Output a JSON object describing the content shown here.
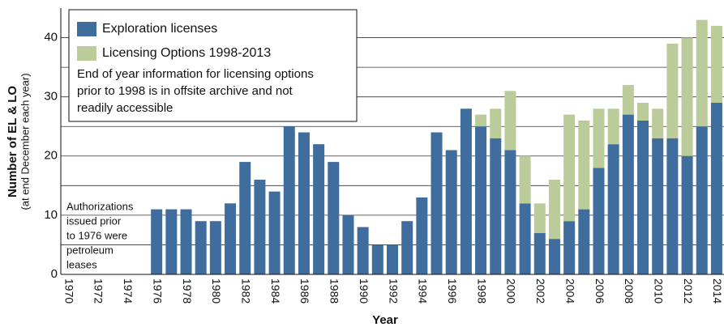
{
  "chart_data": {
    "type": "stacked-bar",
    "categories": [
      "1970",
      null,
      "1972",
      null,
      "1974",
      null,
      "1976",
      null,
      "1978",
      null,
      "1980",
      null,
      "1982",
      null,
      "1984",
      null,
      "1986",
      null,
      "1988",
      null,
      "1990",
      null,
      "1992",
      null,
      "1994",
      null,
      "1996",
      null,
      "1998",
      null,
      "2000",
      null,
      "2002",
      null,
      "2004",
      null,
      "2006",
      null,
      "2008",
      null,
      "2010",
      null,
      "2012",
      null,
      "2014"
    ],
    "series": [
      {
        "name": "Exploration licenses",
        "color": "#3f6e9e",
        "values": [
          null,
          null,
          null,
          null,
          null,
          null,
          11,
          11,
          11,
          9,
          9,
          12,
          19,
          16,
          14,
          25,
          24,
          22,
          19,
          10,
          8,
          5,
          5,
          9,
          13,
          24,
          21,
          28,
          25,
          23,
          21,
          12,
          7,
          6,
          9,
          11,
          18,
          22,
          27,
          26,
          23,
          23,
          20,
          25,
          29
        ]
      },
      {
        "name": "Licensing Options 1998-2013",
        "color": "#bccb9a",
        "values": [
          null,
          null,
          null,
          null,
          null,
          null,
          null,
          null,
          null,
          null,
          null,
          null,
          null,
          null,
          null,
          null,
          null,
          null,
          null,
          null,
          null,
          null,
          null,
          null,
          null,
          null,
          null,
          null,
          2,
          5,
          10,
          8,
          5,
          10,
          18,
          15,
          10,
          6,
          5,
          3,
          5,
          16,
          20,
          18,
          13
        ]
      }
    ],
    "ylim": [
      0,
      45
    ],
    "yticks": [
      0,
      10,
      20,
      30,
      40
    ],
    "minor_grid": [
      5,
      15,
      25,
      35
    ],
    "grid": true,
    "y_label": "Number of EL & LO",
    "y_sublabel": "(at end December each year)",
    "x_label": "Year",
    "legend_note": [
      "End of year information for licensing options",
      "prior to 1998 is in offsite archive and not",
      "readily accessible"
    ],
    "annotation": [
      "Authorizations",
      "issued prior",
      "to 1976 were",
      "petroleum",
      "leases"
    ]
  }
}
